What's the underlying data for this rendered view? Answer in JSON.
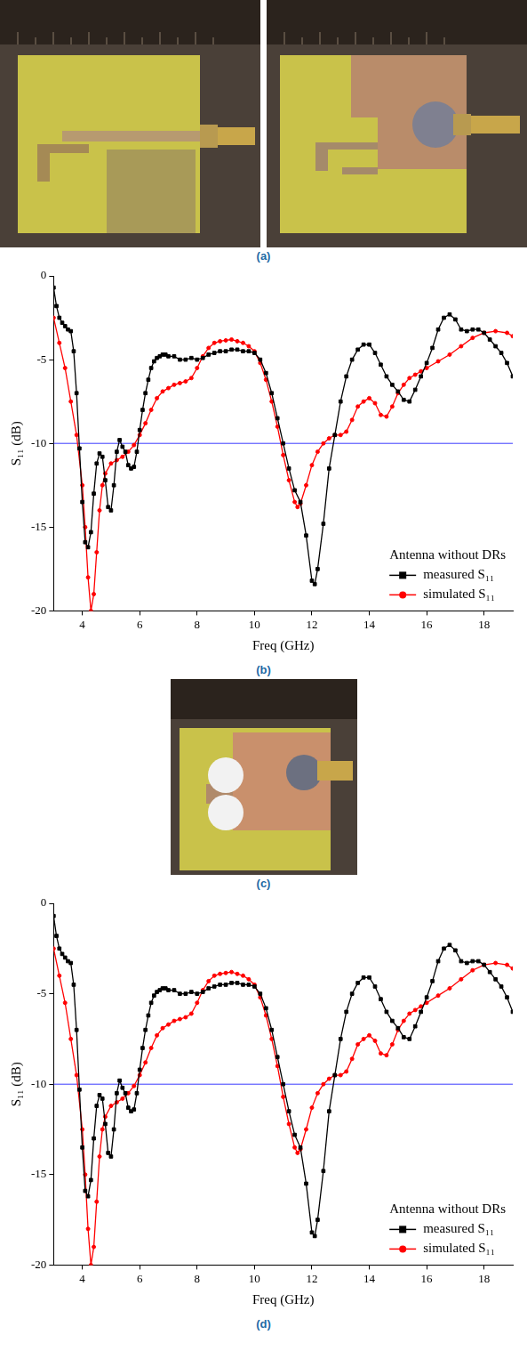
{
  "captions": [
    "(a)",
    "(b)",
    "(c)",
    "(d)"
  ],
  "chart_data": [
    {
      "type": "line",
      "xlabel": "Freq (GHz)",
      "ylabel": "S₁₁ (dB)",
      "xlim": [
        3,
        19
      ],
      "xticks": [
        4,
        6,
        8,
        10,
        12,
        14,
        16,
        18
      ],
      "ylim": [
        -20,
        0
      ],
      "yticks": [
        -20,
        -15,
        -10,
        -5,
        0
      ],
      "grid": false,
      "legend": "lower right",
      "legend_title": "Antenna without DRs",
      "threshold": -10,
      "series": [
        {
          "name": "measured S₁₁",
          "color": "#000000",
          "marker": "square",
          "x": [
            3.0,
            3.1,
            3.2,
            3.3,
            3.4,
            3.5,
            3.6,
            3.7,
            3.8,
            3.9,
            4.0,
            4.1,
            4.2,
            4.3,
            4.4,
            4.5,
            4.6,
            4.7,
            4.8,
            4.9,
            5.0,
            5.1,
            5.2,
            5.3,
            5.4,
            5.5,
            5.6,
            5.7,
            5.8,
            5.9,
            6.0,
            6.1,
            6.2,
            6.3,
            6.4,
            6.5,
            6.6,
            6.7,
            6.8,
            6.9,
            7.0,
            7.2,
            7.4,
            7.6,
            7.8,
            8.0,
            8.2,
            8.4,
            8.6,
            8.8,
            9.0,
            9.2,
            9.4,
            9.6,
            9.8,
            10.0,
            10.2,
            10.4,
            10.6,
            10.8,
            11.0,
            11.2,
            11.4,
            11.6,
            11.8,
            12.0,
            12.1,
            12.2,
            12.4,
            12.6,
            12.8,
            13.0,
            13.2,
            13.4,
            13.6,
            13.8,
            14.0,
            14.2,
            14.4,
            14.6,
            14.8,
            15.0,
            15.2,
            15.4,
            15.6,
            15.8,
            16.0,
            16.2,
            16.4,
            16.6,
            16.8,
            17.0,
            17.2,
            17.4,
            17.6,
            17.8,
            18.0,
            18.2,
            18.4,
            18.6,
            18.8,
            19.0
          ],
          "values": [
            -0.7,
            -1.8,
            -2.5,
            -2.8,
            -3.0,
            -3.2,
            -3.3,
            -4.5,
            -7.0,
            -10.3,
            -13.5,
            -15.9,
            -16.2,
            -15.3,
            -13.0,
            -11.2,
            -10.6,
            -10.8,
            -12.2,
            -13.8,
            -14.0,
            -12.5,
            -10.5,
            -9.8,
            -10.2,
            -10.5,
            -11.3,
            -11.5,
            -11.4,
            -10.5,
            -9.2,
            -8.0,
            -7.0,
            -6.2,
            -5.5,
            -5.1,
            -4.9,
            -4.8,
            -4.7,
            -4.7,
            -4.8,
            -4.8,
            -5.0,
            -5.0,
            -4.9,
            -5.0,
            -4.9,
            -4.7,
            -4.6,
            -4.5,
            -4.5,
            -4.4,
            -4.4,
            -4.5,
            -4.5,
            -4.6,
            -5.0,
            -5.8,
            -7.0,
            -8.5,
            -10.0,
            -11.5,
            -12.8,
            -13.5,
            -15.5,
            -18.2,
            -18.4,
            -17.5,
            -14.8,
            -11.5,
            -9.5,
            -7.5,
            -6.0,
            -5.0,
            -4.4,
            -4.1,
            -4.1,
            -4.6,
            -5.3,
            -6.0,
            -6.5,
            -6.9,
            -7.4,
            -7.5,
            -6.8,
            -6.0,
            -5.2,
            -4.3,
            -3.2,
            -2.5,
            -2.3,
            -2.6,
            -3.2,
            -3.3,
            -3.2,
            -3.2,
            -3.4,
            -3.8,
            -4.2,
            -4.6,
            -5.2,
            -6.0
          ]
        },
        {
          "name": "simulated S₁₁",
          "color": "#ff0000",
          "marker": "circle",
          "x": [
            3.0,
            3.2,
            3.4,
            3.6,
            3.8,
            4.0,
            4.1,
            4.2,
            4.3,
            4.4,
            4.5,
            4.6,
            4.7,
            4.8,
            5.0,
            5.2,
            5.4,
            5.6,
            5.8,
            6.0,
            6.2,
            6.4,
            6.6,
            6.8,
            7.0,
            7.2,
            7.4,
            7.6,
            7.8,
            8.0,
            8.2,
            8.4,
            8.6,
            8.8,
            9.0,
            9.2,
            9.4,
            9.6,
            9.8,
            10.0,
            10.2,
            10.4,
            10.6,
            10.8,
            11.0,
            11.2,
            11.4,
            11.5,
            11.6,
            11.8,
            12.0,
            12.2,
            12.4,
            12.6,
            12.8,
            13.0,
            13.2,
            13.4,
            13.6,
            13.8,
            14.0,
            14.2,
            14.4,
            14.6,
            14.8,
            15.0,
            15.2,
            15.4,
            15.6,
            15.8,
            16.0,
            16.4,
            16.8,
            17.2,
            17.6,
            18.0,
            18.4,
            18.8,
            19.0
          ],
          "values": [
            -2.5,
            -4.0,
            -5.5,
            -7.5,
            -9.5,
            -12.5,
            -15.0,
            -18.0,
            -20.0,
            -19.0,
            -16.5,
            -14.0,
            -12.5,
            -11.8,
            -11.2,
            -11.0,
            -10.8,
            -10.5,
            -10.1,
            -9.5,
            -8.8,
            -8.0,
            -7.3,
            -6.9,
            -6.7,
            -6.5,
            -6.4,
            -6.3,
            -6.1,
            -5.5,
            -4.8,
            -4.3,
            -4.0,
            -3.9,
            -3.85,
            -3.8,
            -3.9,
            -4.0,
            -4.2,
            -4.5,
            -5.2,
            -6.2,
            -7.5,
            -9.0,
            -10.7,
            -12.2,
            -13.5,
            -13.8,
            -13.6,
            -12.5,
            -11.3,
            -10.5,
            -10.0,
            -9.7,
            -9.5,
            -9.5,
            -9.3,
            -8.6,
            -7.8,
            -7.5,
            -7.3,
            -7.6,
            -8.3,
            -8.4,
            -7.8,
            -7.0,
            -6.5,
            -6.1,
            -5.9,
            -5.7,
            -5.5,
            -5.1,
            -4.7,
            -4.2,
            -3.7,
            -3.4,
            -3.3,
            -3.4,
            -3.6
          ]
        }
      ]
    },
    {
      "type": "line",
      "xlabel": "Freq (GHz)",
      "ylabel": "S₁₁ (dB)",
      "xlim": [
        3,
        19
      ],
      "xticks": [
        4,
        6,
        8,
        10,
        12,
        14,
        16,
        18
      ],
      "ylim": [
        -20,
        0
      ],
      "yticks": [
        -20,
        -15,
        -10,
        -5,
        0
      ],
      "grid": false,
      "legend": "lower right",
      "legend_title": "Antenna without DRs",
      "threshold": -10,
      "series": [
        {
          "name": "measured S₁₁",
          "color": "#000000",
          "marker": "square",
          "x": [
            3.0,
            3.1,
            3.2,
            3.3,
            3.4,
            3.5,
            3.6,
            3.7,
            3.8,
            3.9,
            4.0,
            4.1,
            4.2,
            4.3,
            4.4,
            4.5,
            4.6,
            4.7,
            4.8,
            4.9,
            5.0,
            5.1,
            5.2,
            5.3,
            5.4,
            5.5,
            5.6,
            5.7,
            5.8,
            5.9,
            6.0,
            6.1,
            6.2,
            6.3,
            6.4,
            6.5,
            6.6,
            6.7,
            6.8,
            6.9,
            7.0,
            7.2,
            7.4,
            7.6,
            7.8,
            8.0,
            8.2,
            8.4,
            8.6,
            8.8,
            9.0,
            9.2,
            9.4,
            9.6,
            9.8,
            10.0,
            10.2,
            10.4,
            10.6,
            10.8,
            11.0,
            11.2,
            11.4,
            11.6,
            11.8,
            12.0,
            12.1,
            12.2,
            12.4,
            12.6,
            12.8,
            13.0,
            13.2,
            13.4,
            13.6,
            13.8,
            14.0,
            14.2,
            14.4,
            14.6,
            14.8,
            15.0,
            15.2,
            15.4,
            15.6,
            15.8,
            16.0,
            16.2,
            16.4,
            16.6,
            16.8,
            17.0,
            17.2,
            17.4,
            17.6,
            17.8,
            18.0,
            18.2,
            18.4,
            18.6,
            18.8,
            19.0
          ],
          "values": [
            -0.7,
            -1.8,
            -2.5,
            -2.8,
            -3.0,
            -3.2,
            -3.3,
            -4.5,
            -7.0,
            -10.3,
            -13.5,
            -15.9,
            -16.2,
            -15.3,
            -13.0,
            -11.2,
            -10.6,
            -10.8,
            -12.2,
            -13.8,
            -14.0,
            -12.5,
            -10.5,
            -9.8,
            -10.2,
            -10.5,
            -11.3,
            -11.5,
            -11.4,
            -10.5,
            -9.2,
            -8.0,
            -7.0,
            -6.2,
            -5.5,
            -5.1,
            -4.9,
            -4.8,
            -4.7,
            -4.7,
            -4.8,
            -4.8,
            -5.0,
            -5.0,
            -4.9,
            -5.0,
            -4.9,
            -4.7,
            -4.6,
            -4.5,
            -4.5,
            -4.4,
            -4.4,
            -4.5,
            -4.5,
            -4.6,
            -5.0,
            -5.8,
            -7.0,
            -8.5,
            -10.0,
            -11.5,
            -12.8,
            -13.5,
            -15.5,
            -18.2,
            -18.4,
            -17.5,
            -14.8,
            -11.5,
            -9.5,
            -7.5,
            -6.0,
            -5.0,
            -4.4,
            -4.1,
            -4.1,
            -4.6,
            -5.3,
            -6.0,
            -6.5,
            -6.9,
            -7.4,
            -7.5,
            -6.8,
            -6.0,
            -5.2,
            -4.3,
            -3.2,
            -2.5,
            -2.3,
            -2.6,
            -3.2,
            -3.3,
            -3.2,
            -3.2,
            -3.4,
            -3.8,
            -4.2,
            -4.6,
            -5.2,
            -6.0
          ]
        },
        {
          "name": "simulated S₁₁",
          "color": "#ff0000",
          "marker": "circle",
          "x": [
            3.0,
            3.2,
            3.4,
            3.6,
            3.8,
            4.0,
            4.1,
            4.2,
            4.3,
            4.4,
            4.5,
            4.6,
            4.7,
            4.8,
            5.0,
            5.2,
            5.4,
            5.6,
            5.8,
            6.0,
            6.2,
            6.4,
            6.6,
            6.8,
            7.0,
            7.2,
            7.4,
            7.6,
            7.8,
            8.0,
            8.2,
            8.4,
            8.6,
            8.8,
            9.0,
            9.2,
            9.4,
            9.6,
            9.8,
            10.0,
            10.2,
            10.4,
            10.6,
            10.8,
            11.0,
            11.2,
            11.4,
            11.5,
            11.6,
            11.8,
            12.0,
            12.2,
            12.4,
            12.6,
            12.8,
            13.0,
            13.2,
            13.4,
            13.6,
            13.8,
            14.0,
            14.2,
            14.4,
            14.6,
            14.8,
            15.0,
            15.2,
            15.4,
            15.6,
            15.8,
            16.0,
            16.4,
            16.8,
            17.2,
            17.6,
            18.0,
            18.4,
            18.8,
            19.0
          ],
          "values": [
            -2.5,
            -4.0,
            -5.5,
            -7.5,
            -9.5,
            -12.5,
            -15.0,
            -18.0,
            -20.0,
            -19.0,
            -16.5,
            -14.0,
            -12.5,
            -11.8,
            -11.2,
            -11.0,
            -10.8,
            -10.5,
            -10.1,
            -9.5,
            -8.8,
            -8.0,
            -7.3,
            -6.9,
            -6.7,
            -6.5,
            -6.4,
            -6.3,
            -6.1,
            -5.5,
            -4.8,
            -4.3,
            -4.0,
            -3.9,
            -3.85,
            -3.8,
            -3.9,
            -4.0,
            -4.2,
            -4.5,
            -5.2,
            -6.2,
            -7.5,
            -9.0,
            -10.7,
            -12.2,
            -13.5,
            -13.8,
            -13.6,
            -12.5,
            -11.3,
            -10.5,
            -10.0,
            -9.7,
            -9.5,
            -9.5,
            -9.3,
            -8.6,
            -7.8,
            -7.5,
            -7.3,
            -7.6,
            -8.3,
            -8.4,
            -7.8,
            -7.0,
            -6.5,
            -6.1,
            -5.9,
            -5.7,
            -5.5,
            -5.1,
            -4.7,
            -4.2,
            -3.7,
            -3.4,
            -3.3,
            -3.4,
            -3.6
          ]
        }
      ]
    }
  ]
}
